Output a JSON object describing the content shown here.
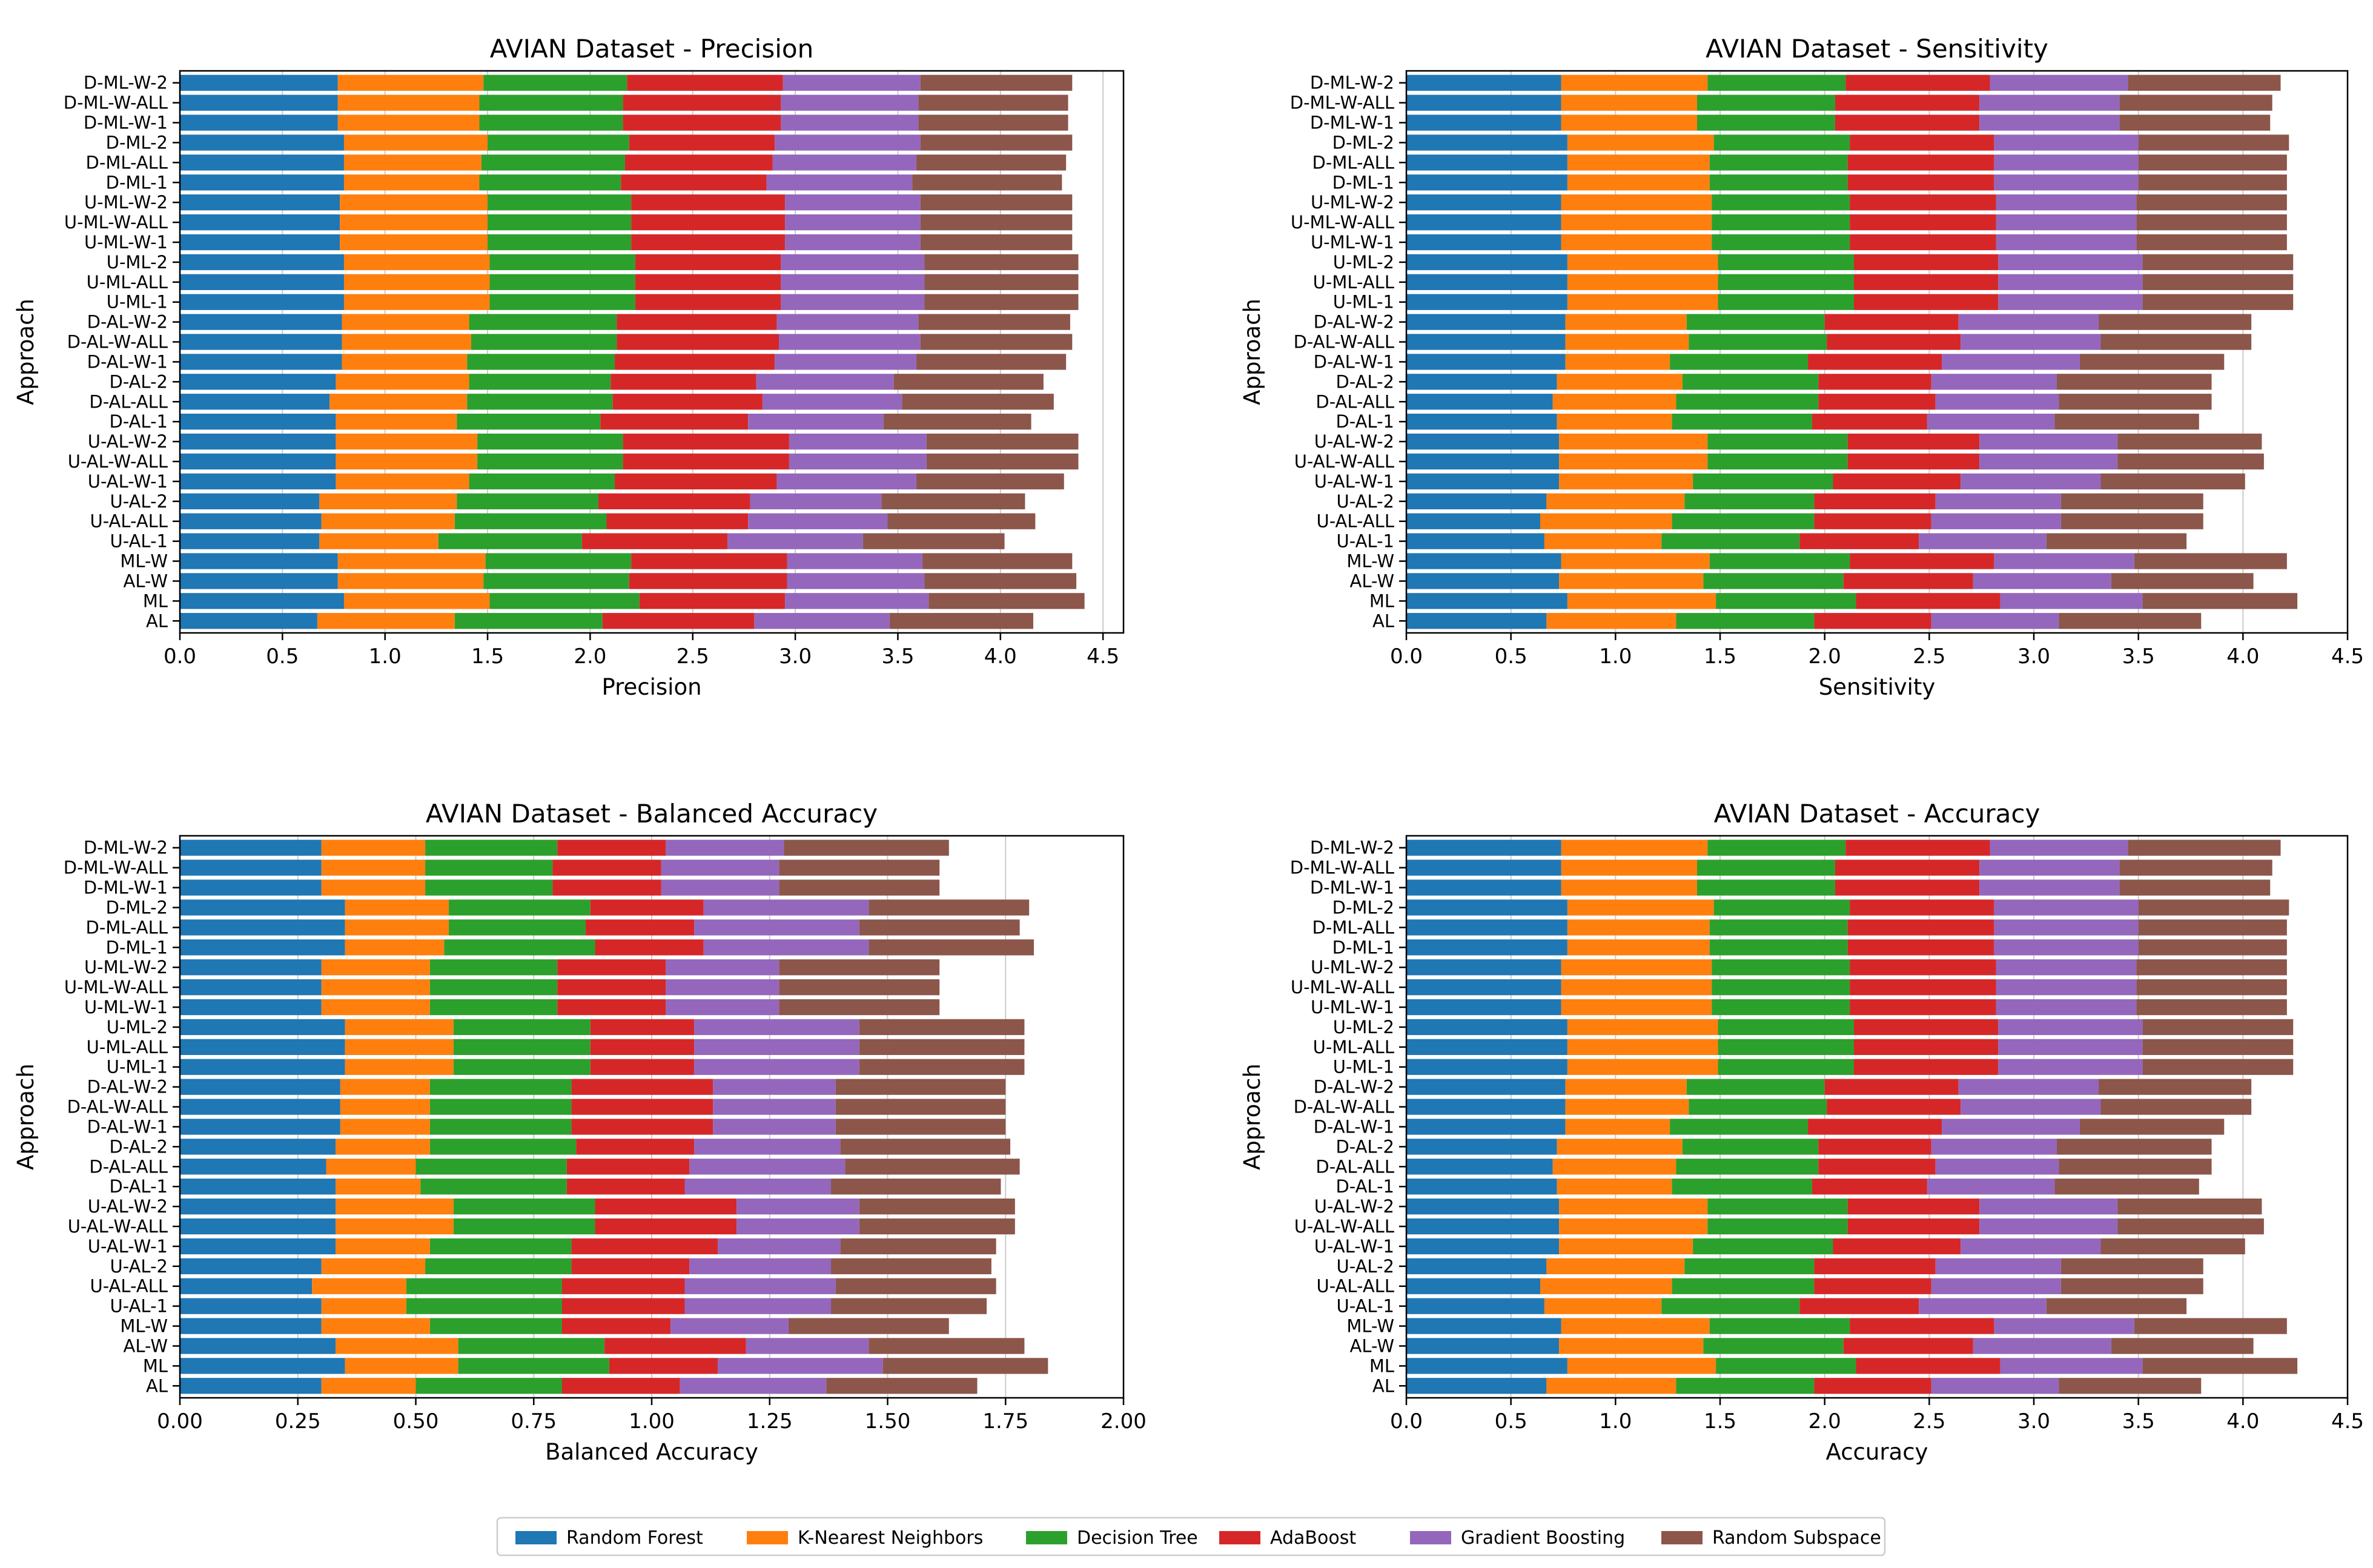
{
  "legend": [
    "Random Forest",
    "K-Nearest Neighbors",
    "Decision Tree",
    "AdaBoost",
    "Gradient Boosting",
    "Random Subspace"
  ],
  "colors": [
    "#1f77b4",
    "#ff7f0e",
    "#2ca02c",
    "#d62728",
    "#9467bd",
    "#8c564b"
  ],
  "chart_data": [
    {
      "type": "bar",
      "orientation": "horizontal",
      "stacked": true,
      "title": "AVIAN Dataset - Precision",
      "xlabel": "Precision",
      "ylabel": "Approach",
      "xlim": [
        0,
        4.6
      ],
      "xticks": [
        "0.0",
        "0.5",
        "1.0",
        "1.5",
        "2.0",
        "2.5",
        "3.0",
        "3.5",
        "4.0",
        "4.5"
      ],
      "xtick_values": [
        0,
        0.5,
        1,
        1.5,
        2,
        2.5,
        3,
        3.5,
        4,
        4.5
      ],
      "categories": [
        "D-ML-W-2",
        "D-ML-W-ALL",
        "D-ML-W-1",
        "D-ML-2",
        "D-ML-ALL",
        "D-ML-1",
        "U-ML-W-2",
        "U-ML-W-ALL",
        "U-ML-W-1",
        "U-ML-2",
        "U-ML-ALL",
        "U-ML-1",
        "D-AL-W-2",
        "D-AL-W-ALL",
        "D-AL-W-1",
        "D-AL-2",
        "D-AL-ALL",
        "D-AL-1",
        "U-AL-W-2",
        "U-AL-W-ALL",
        "U-AL-W-1",
        "U-AL-2",
        "U-AL-ALL",
        "U-AL-1",
        "ML-W",
        "AL-W",
        "ML",
        "AL"
      ],
      "series": [
        {
          "name": "Random Forest",
          "values": [
            0.77,
            0.77,
            0.77,
            0.8,
            0.8,
            0.8,
            0.78,
            0.78,
            0.78,
            0.8,
            0.8,
            0.8,
            0.79,
            0.79,
            0.79,
            0.76,
            0.73,
            0.76,
            0.76,
            0.76,
            0.76,
            0.68,
            0.69,
            0.68,
            0.77,
            0.77,
            0.8,
            0.67
          ]
        },
        {
          "name": "K-Nearest Neighbors",
          "values": [
            0.71,
            0.69,
            0.69,
            0.7,
            0.67,
            0.66,
            0.72,
            0.72,
            0.72,
            0.71,
            0.71,
            0.71,
            0.62,
            0.63,
            0.61,
            0.65,
            0.67,
            0.59,
            0.69,
            0.69,
            0.65,
            0.67,
            0.65,
            0.58,
            0.72,
            0.71,
            0.71,
            0.67
          ]
        },
        {
          "name": "Decision Tree",
          "values": [
            0.7,
            0.7,
            0.7,
            0.69,
            0.7,
            0.69,
            0.7,
            0.7,
            0.7,
            0.71,
            0.71,
            0.71,
            0.72,
            0.71,
            0.72,
            0.69,
            0.71,
            0.7,
            0.71,
            0.71,
            0.71,
            0.69,
            0.74,
            0.7,
            0.71,
            0.71,
            0.73,
            0.72
          ]
        },
        {
          "name": "AdaBoost",
          "values": [
            0.76,
            0.77,
            0.77,
            0.71,
            0.72,
            0.71,
            0.75,
            0.75,
            0.75,
            0.71,
            0.71,
            0.71,
            0.78,
            0.79,
            0.78,
            0.71,
            0.73,
            0.72,
            0.81,
            0.81,
            0.79,
            0.74,
            0.69,
            0.71,
            0.76,
            0.77,
            0.71,
            0.74
          ]
        },
        {
          "name": "Gradient Boosting",
          "values": [
            0.67,
            0.67,
            0.67,
            0.71,
            0.7,
            0.71,
            0.66,
            0.66,
            0.66,
            0.7,
            0.7,
            0.7,
            0.69,
            0.69,
            0.69,
            0.67,
            0.68,
            0.66,
            0.67,
            0.67,
            0.68,
            0.64,
            0.68,
            0.66,
            0.66,
            0.67,
            0.7,
            0.66
          ]
        },
        {
          "name": "Random Subspace",
          "values": [
            0.74,
            0.73,
            0.73,
            0.74,
            0.73,
            0.73,
            0.74,
            0.74,
            0.74,
            0.75,
            0.75,
            0.75,
            0.74,
            0.74,
            0.73,
            0.73,
            0.74,
            0.72,
            0.74,
            0.74,
            0.72,
            0.7,
            0.72,
            0.69,
            0.73,
            0.74,
            0.76,
            0.7
          ]
        }
      ]
    },
    {
      "type": "bar",
      "orientation": "horizontal",
      "stacked": true,
      "title": "AVIAN Dataset - Sensitivity",
      "xlabel": "Sensitivity",
      "ylabel": "Approach",
      "xlim": [
        0,
        4.5
      ],
      "xticks": [
        "0.0",
        "0.5",
        "1.0",
        "1.5",
        "2.0",
        "2.5",
        "3.0",
        "3.5",
        "4.0",
        "4.5"
      ],
      "xtick_values": [
        0,
        0.5,
        1,
        1.5,
        2,
        2.5,
        3,
        3.5,
        4,
        4.5
      ],
      "categories": [
        "D-ML-W-2",
        "D-ML-W-ALL",
        "D-ML-W-1",
        "D-ML-2",
        "D-ML-ALL",
        "D-ML-1",
        "U-ML-W-2",
        "U-ML-W-ALL",
        "U-ML-W-1",
        "U-ML-2",
        "U-ML-ALL",
        "U-ML-1",
        "D-AL-W-2",
        "D-AL-W-ALL",
        "D-AL-W-1",
        "D-AL-2",
        "D-AL-ALL",
        "D-AL-1",
        "U-AL-W-2",
        "U-AL-W-ALL",
        "U-AL-W-1",
        "U-AL-2",
        "U-AL-ALL",
        "U-AL-1",
        "ML-W",
        "AL-W",
        "ML",
        "AL"
      ],
      "series": [
        {
          "name": "Random Forest",
          "values": [
            0.74,
            0.74,
            0.74,
            0.77,
            0.77,
            0.77,
            0.74,
            0.74,
            0.74,
            0.77,
            0.77,
            0.77,
            0.76,
            0.76,
            0.76,
            0.72,
            0.7,
            0.72,
            0.73,
            0.73,
            0.73,
            0.67,
            0.64,
            0.66,
            0.74,
            0.73,
            0.77,
            0.67
          ]
        },
        {
          "name": "K-Nearest Neighbors",
          "values": [
            0.7,
            0.65,
            0.65,
            0.7,
            0.68,
            0.68,
            0.72,
            0.72,
            0.72,
            0.72,
            0.72,
            0.72,
            0.58,
            0.59,
            0.5,
            0.6,
            0.59,
            0.55,
            0.71,
            0.71,
            0.64,
            0.66,
            0.63,
            0.56,
            0.71,
            0.69,
            0.71,
            0.62
          ]
        },
        {
          "name": "Decision Tree",
          "values": [
            0.66,
            0.66,
            0.66,
            0.65,
            0.66,
            0.66,
            0.66,
            0.66,
            0.66,
            0.65,
            0.65,
            0.65,
            0.66,
            0.66,
            0.66,
            0.65,
            0.68,
            0.67,
            0.67,
            0.67,
            0.67,
            0.62,
            0.68,
            0.66,
            0.67,
            0.67,
            0.67,
            0.66
          ]
        },
        {
          "name": "AdaBoost",
          "values": [
            0.69,
            0.69,
            0.69,
            0.69,
            0.7,
            0.7,
            0.7,
            0.7,
            0.7,
            0.69,
            0.69,
            0.69,
            0.64,
            0.64,
            0.64,
            0.54,
            0.56,
            0.55,
            0.63,
            0.63,
            0.61,
            0.58,
            0.56,
            0.57,
            0.69,
            0.62,
            0.69,
            0.56
          ]
        },
        {
          "name": "Gradient Boosting",
          "values": [
            0.66,
            0.67,
            0.67,
            0.69,
            0.69,
            0.69,
            0.67,
            0.67,
            0.67,
            0.69,
            0.69,
            0.69,
            0.67,
            0.67,
            0.66,
            0.6,
            0.59,
            0.61,
            0.66,
            0.66,
            0.67,
            0.6,
            0.62,
            0.61,
            0.67,
            0.66,
            0.68,
            0.61
          ]
        },
        {
          "name": "Random Subspace",
          "values": [
            0.73,
            0.73,
            0.72,
            0.72,
            0.71,
            0.71,
            0.72,
            0.72,
            0.72,
            0.72,
            0.72,
            0.72,
            0.73,
            0.72,
            0.69,
            0.74,
            0.73,
            0.69,
            0.69,
            0.7,
            0.69,
            0.68,
            0.68,
            0.67,
            0.73,
            0.68,
            0.74,
            0.68
          ]
        }
      ]
    },
    {
      "type": "bar",
      "orientation": "horizontal",
      "stacked": true,
      "title": "AVIAN Dataset - Balanced Accuracy",
      "xlabel": "Balanced Accuracy",
      "ylabel": "Approach",
      "xlim": [
        0,
        2.0
      ],
      "xticks": [
        "0.00",
        "0.25",
        "0.50",
        "0.75",
        "1.00",
        "1.25",
        "1.50",
        "1.75",
        "2.00"
      ],
      "xtick_values": [
        0,
        0.25,
        0.5,
        0.75,
        1,
        1.25,
        1.5,
        1.75,
        2.0
      ],
      "categories": [
        "D-ML-W-2",
        "D-ML-W-ALL",
        "D-ML-W-1",
        "D-ML-2",
        "D-ML-ALL",
        "D-ML-1",
        "U-ML-W-2",
        "U-ML-W-ALL",
        "U-ML-W-1",
        "U-ML-2",
        "U-ML-ALL",
        "U-ML-1",
        "D-AL-W-2",
        "D-AL-W-ALL",
        "D-AL-W-1",
        "D-AL-2",
        "D-AL-ALL",
        "D-AL-1",
        "U-AL-W-2",
        "U-AL-W-ALL",
        "U-AL-W-1",
        "U-AL-2",
        "U-AL-ALL",
        "U-AL-1",
        "ML-W",
        "AL-W",
        "ML",
        "AL"
      ],
      "series": [
        {
          "name": "Random Forest",
          "values": [
            0.3,
            0.3,
            0.3,
            0.35,
            0.35,
            0.35,
            0.3,
            0.3,
            0.3,
            0.35,
            0.35,
            0.35,
            0.34,
            0.34,
            0.34,
            0.33,
            0.31,
            0.33,
            0.33,
            0.33,
            0.33,
            0.3,
            0.28,
            0.3,
            0.3,
            0.33,
            0.35,
            0.3
          ]
        },
        {
          "name": "K-Nearest Neighbors",
          "values": [
            0.22,
            0.22,
            0.22,
            0.22,
            0.22,
            0.21,
            0.23,
            0.23,
            0.23,
            0.23,
            0.23,
            0.23,
            0.19,
            0.19,
            0.19,
            0.2,
            0.19,
            0.18,
            0.25,
            0.25,
            0.2,
            0.22,
            0.2,
            0.18,
            0.23,
            0.26,
            0.24,
            0.2
          ]
        },
        {
          "name": "Decision Tree",
          "values": [
            0.28,
            0.27,
            0.27,
            0.3,
            0.29,
            0.32,
            0.27,
            0.27,
            0.27,
            0.29,
            0.29,
            0.29,
            0.3,
            0.3,
            0.3,
            0.31,
            0.32,
            0.31,
            0.3,
            0.3,
            0.3,
            0.31,
            0.33,
            0.33,
            0.28,
            0.31,
            0.32,
            0.31
          ]
        },
        {
          "name": "AdaBoost",
          "values": [
            0.23,
            0.23,
            0.23,
            0.24,
            0.23,
            0.23,
            0.23,
            0.23,
            0.23,
            0.22,
            0.22,
            0.22,
            0.3,
            0.3,
            0.3,
            0.25,
            0.26,
            0.25,
            0.3,
            0.3,
            0.31,
            0.25,
            0.26,
            0.26,
            0.23,
            0.3,
            0.23,
            0.25
          ]
        },
        {
          "name": "Gradient Boosting",
          "values": [
            0.25,
            0.25,
            0.25,
            0.35,
            0.35,
            0.35,
            0.24,
            0.24,
            0.24,
            0.35,
            0.35,
            0.35,
            0.26,
            0.26,
            0.26,
            0.31,
            0.33,
            0.31,
            0.26,
            0.26,
            0.26,
            0.3,
            0.32,
            0.31,
            0.25,
            0.26,
            0.35,
            0.31
          ]
        },
        {
          "name": "Random Subspace",
          "values": [
            0.35,
            0.34,
            0.34,
            0.34,
            0.34,
            0.35,
            0.34,
            0.34,
            0.34,
            0.35,
            0.35,
            0.35,
            0.36,
            0.36,
            0.36,
            0.36,
            0.37,
            0.36,
            0.33,
            0.33,
            0.33,
            0.34,
            0.34,
            0.33,
            0.34,
            0.33,
            0.35,
            0.32
          ]
        }
      ]
    },
    {
      "type": "bar",
      "orientation": "horizontal",
      "stacked": true,
      "title": "AVIAN Dataset - Accuracy",
      "xlabel": "Accuracy",
      "ylabel": "Approach",
      "xlim": [
        0,
        4.5
      ],
      "xticks": [
        "0.0",
        "0.5",
        "1.0",
        "1.5",
        "2.0",
        "2.5",
        "3.0",
        "3.5",
        "4.0",
        "4.5"
      ],
      "xtick_values": [
        0,
        0.5,
        1,
        1.5,
        2,
        2.5,
        3,
        3.5,
        4,
        4.5
      ],
      "categories": [
        "D-ML-W-2",
        "D-ML-W-ALL",
        "D-ML-W-1",
        "D-ML-2",
        "D-ML-ALL",
        "D-ML-1",
        "U-ML-W-2",
        "U-ML-W-ALL",
        "U-ML-W-1",
        "U-ML-2",
        "U-ML-ALL",
        "U-ML-1",
        "D-AL-W-2",
        "D-AL-W-ALL",
        "D-AL-W-1",
        "D-AL-2",
        "D-AL-ALL",
        "D-AL-1",
        "U-AL-W-2",
        "U-AL-W-ALL",
        "U-AL-W-1",
        "U-AL-2",
        "U-AL-ALL",
        "U-AL-1",
        "ML-W",
        "AL-W",
        "ML",
        "AL"
      ],
      "series": [
        {
          "name": "Random Forest",
          "values": [
            0.74,
            0.74,
            0.74,
            0.77,
            0.77,
            0.77,
            0.74,
            0.74,
            0.74,
            0.77,
            0.77,
            0.77,
            0.76,
            0.76,
            0.76,
            0.72,
            0.7,
            0.72,
            0.73,
            0.73,
            0.73,
            0.67,
            0.64,
            0.66,
            0.74,
            0.73,
            0.77,
            0.67
          ]
        },
        {
          "name": "K-Nearest Neighbors",
          "values": [
            0.7,
            0.65,
            0.65,
            0.7,
            0.68,
            0.68,
            0.72,
            0.72,
            0.72,
            0.72,
            0.72,
            0.72,
            0.58,
            0.59,
            0.5,
            0.6,
            0.59,
            0.55,
            0.71,
            0.71,
            0.64,
            0.66,
            0.63,
            0.56,
            0.71,
            0.69,
            0.71,
            0.62
          ]
        },
        {
          "name": "Decision Tree",
          "values": [
            0.66,
            0.66,
            0.66,
            0.65,
            0.66,
            0.66,
            0.66,
            0.66,
            0.66,
            0.65,
            0.65,
            0.65,
            0.66,
            0.66,
            0.66,
            0.65,
            0.68,
            0.67,
            0.67,
            0.67,
            0.67,
            0.62,
            0.68,
            0.66,
            0.67,
            0.67,
            0.67,
            0.66
          ]
        },
        {
          "name": "AdaBoost",
          "values": [
            0.69,
            0.69,
            0.69,
            0.69,
            0.7,
            0.7,
            0.7,
            0.7,
            0.7,
            0.69,
            0.69,
            0.69,
            0.64,
            0.64,
            0.64,
            0.54,
            0.56,
            0.55,
            0.63,
            0.63,
            0.61,
            0.58,
            0.56,
            0.57,
            0.69,
            0.62,
            0.69,
            0.56
          ]
        },
        {
          "name": "Gradient Boosting",
          "values": [
            0.66,
            0.67,
            0.67,
            0.69,
            0.69,
            0.69,
            0.67,
            0.67,
            0.67,
            0.69,
            0.69,
            0.69,
            0.67,
            0.67,
            0.66,
            0.6,
            0.59,
            0.61,
            0.66,
            0.66,
            0.67,
            0.6,
            0.62,
            0.61,
            0.67,
            0.66,
            0.68,
            0.61
          ]
        },
        {
          "name": "Random Subspace",
          "values": [
            0.73,
            0.73,
            0.72,
            0.72,
            0.71,
            0.71,
            0.72,
            0.72,
            0.72,
            0.72,
            0.72,
            0.72,
            0.73,
            0.72,
            0.69,
            0.74,
            0.73,
            0.69,
            0.69,
            0.7,
            0.69,
            0.68,
            0.68,
            0.67,
            0.73,
            0.68,
            0.74,
            0.68
          ]
        }
      ]
    }
  ]
}
